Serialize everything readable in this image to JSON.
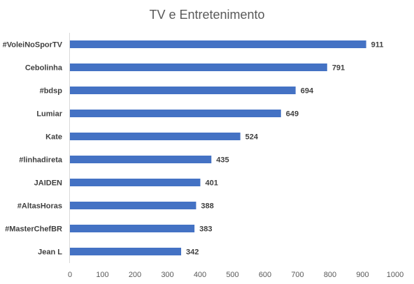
{
  "chart_data": {
    "type": "bar",
    "orientation": "horizontal",
    "title": "TV e Entretenimento",
    "categories": [
      "#VoleiNoSporTV",
      "Cebolinha",
      "#bdsp",
      "Lumiar",
      "Kate",
      "#linhadireta",
      "JAIDEN",
      "#AltasHoras",
      "#MasterChefBR",
      "Jean L"
    ],
    "values": [
      911,
      791,
      694,
      649,
      524,
      435,
      401,
      388,
      383,
      342
    ],
    "xlabel": "",
    "ylabel": "",
    "xlim": [
      0,
      1000
    ],
    "xticks": [
      "0",
      "100",
      "200",
      "300",
      "400",
      "500",
      "600",
      "700",
      "800",
      "900",
      "1000"
    ],
    "grid": false,
    "legend": "none",
    "bar_color": "#4472C4",
    "data_labels": true
  }
}
